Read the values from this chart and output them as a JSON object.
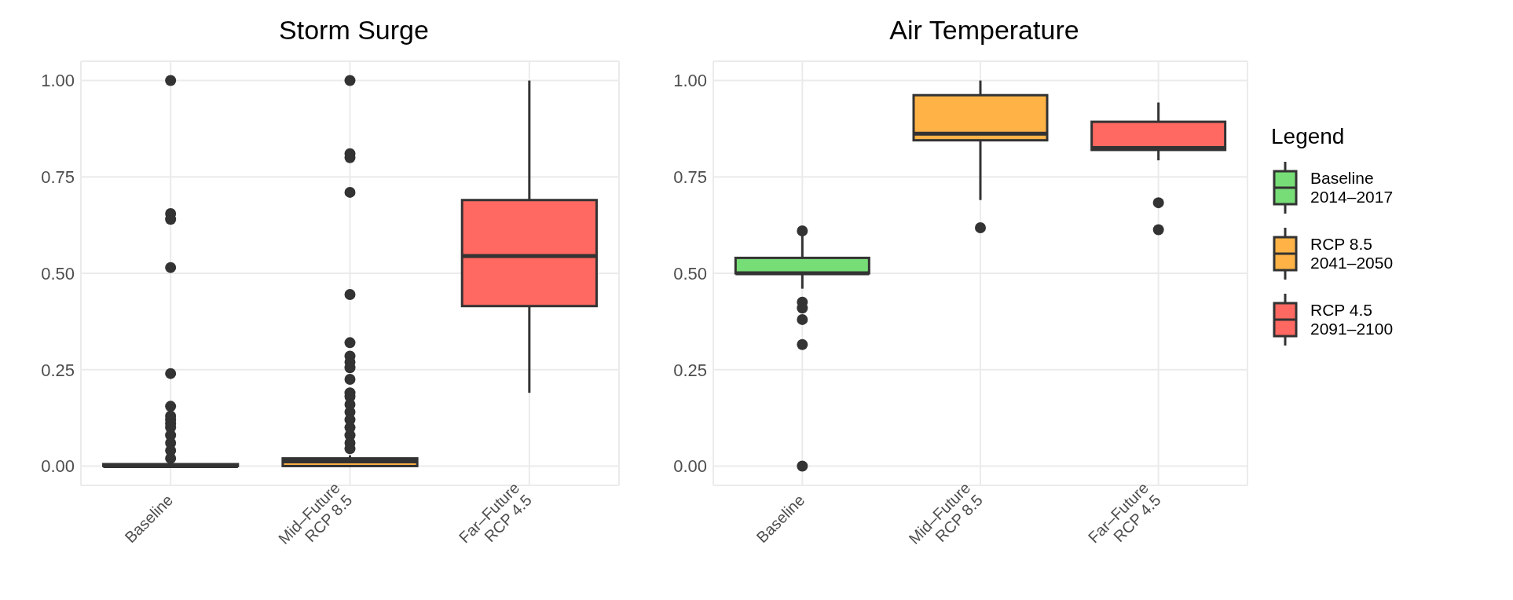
{
  "chart_data": [
    {
      "type": "box",
      "title": "Storm Surge",
      "categories": [
        "Baseline",
        "Mid–Future\nRCP 8.5",
        "Far–Future\nRCP 4.5"
      ],
      "ylim": [
        -0.05,
        1.05
      ],
      "yticks": [
        {
          "value": 0,
          "label": "0.00"
        },
        {
          "value": 0.25,
          "label": "0.25"
        },
        {
          "value": 0.5,
          "label": "0.50"
        },
        {
          "value": 0.75,
          "label": "0.75"
        },
        {
          "value": 1,
          "label": "1.00"
        }
      ],
      "grid": true,
      "series": [
        {
          "color": "#77dd77",
          "boxes": [
            {
              "low": 0,
              "q1": 0,
              "median": 0,
              "q3": 0.005,
              "high": 0.01,
              "outliers": [
                1.0,
                0.655,
                0.64,
                0.515,
                0.24,
                0.155,
                0.13,
                0.12,
                0.11,
                0.1,
                0.08,
                0.06,
                0.04,
                0.02
              ]
            },
            null,
            null
          ]
        },
        {
          "color": "#ffb347",
          "boxes": [
            null,
            {
              "low": 0,
              "q1": 0,
              "median": 0.012,
              "q3": 0.02,
              "high": 0.028,
              "outliers": [
                1.0,
                0.81,
                0.8,
                0.71,
                0.445,
                0.32,
                0.285,
                0.27,
                0.255,
                0.225,
                0.19,
                0.18,
                0.16,
                0.14,
                0.12,
                0.1,
                0.08,
                0.06,
                0.045
              ]
            },
            null
          ]
        },
        {
          "color": "#ff6961",
          "boxes": [
            null,
            null,
            {
              "low": 0.19,
              "q1": 0.415,
              "median": 0.545,
              "q3": 0.69,
              "high": 1.0
            }
          ]
        }
      ]
    },
    {
      "type": "box",
      "title": "Air Temperature",
      "categories": [
        "Baseline",
        "Mid–Future\nRCP 8.5",
        "Far–Future\nRCP 4.5"
      ],
      "ylim": [
        -0.05,
        1.05
      ],
      "yticks": [
        {
          "value": 0,
          "label": "0.00"
        },
        {
          "value": 0.25,
          "label": "0.25"
        },
        {
          "value": 0.5,
          "label": "0.50"
        },
        {
          "value": 0.75,
          "label": "0.75"
        },
        {
          "value": 1,
          "label": "1.00"
        }
      ],
      "grid": true,
      "legend": "right",
      "legend_title": "Legend",
      "series": [
        {
          "name": "Baseline\n2014–2017",
          "color": "#77dd77",
          "boxes": [
            {
              "low": 0.46,
              "q1": 0.5,
              "median": 0.5,
              "q3": 0.54,
              "high": 0.6,
              "outliers": [
                0.61,
                0.425,
                0.41,
                0.38,
                0.315,
                0
              ]
            },
            null,
            null
          ]
        },
        {
          "name": "RCP 8.5\n2041–2050",
          "color": "#ffb347",
          "boxes": [
            null,
            {
              "low": 0.69,
              "q1": 0.845,
              "median": 0.862,
              "q3": 0.962,
              "high": 1.0,
              "outliers": [
                0.618
              ]
            },
            null
          ]
        },
        {
          "name": "RCP 4.5\n2091–2100",
          "color": "#ff6961",
          "boxes": [
            null,
            null,
            {
              "low": 0.793,
              "q1": 0.82,
              "median": 0.825,
              "q3": 0.893,
              "high": 0.943,
              "outliers": [
                0.683,
                0.613
              ]
            }
          ]
        }
      ]
    }
  ]
}
